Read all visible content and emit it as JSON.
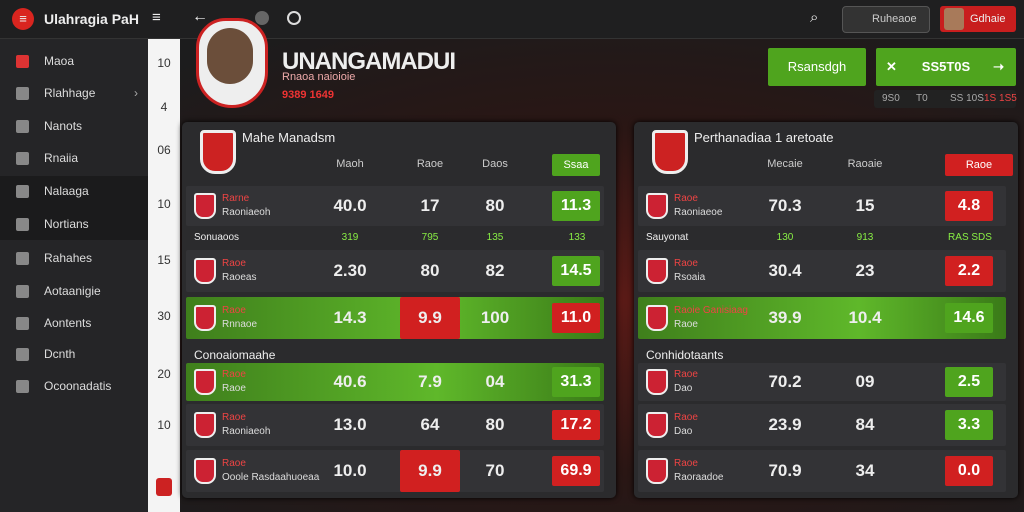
{
  "app": {
    "title": "Ulahragia PaH"
  },
  "topbar": {
    "search": "Ruheaoe",
    "user": "Gdhaie"
  },
  "sidebar": {
    "items": [
      "Maoa",
      "Rlahhage",
      "Nanots",
      "Rnaiia",
      "Nalaaga",
      "Nortians",
      "Rahahes",
      "Aotaanigie",
      "Aontents",
      "Dcnth",
      "Ocoonadatis"
    ]
  },
  "strip": {
    "numbers": [
      "10",
      "4",
      "06",
      "10",
      "15",
      "30",
      "20",
      "10"
    ]
  },
  "profile": {
    "name": "UNANGAMADUI",
    "line1": "Rnaoa naioioie",
    "line2": "9389 1649"
  },
  "actions": {
    "primary": "Rsansdgh",
    "secondary": "SS5T0S",
    "stats": [
      "9S0",
      "T0",
      "SS 10S",
      "1S 1S5"
    ]
  },
  "left_panel": {
    "title": "Mahe Manadsm",
    "columns": [
      "Maoh",
      "Raoe",
      "Daos"
    ],
    "button": "Ssaa",
    "section": "Conoaiomaahe",
    "rows": [
      {
        "name": "Rarne",
        "detail": "Raoniaeoh",
        "values": [
          "40.0",
          "17",
          "80"
        ],
        "badge": "11.3",
        "badge_color": "green",
        "highlight": false
      },
      {
        "group": "Sonuaoos",
        "values": [
          "319",
          "795",
          "135",
          "133"
        ]
      },
      {
        "name": "Raoe",
        "detail": "Raoeas",
        "values": [
          "2.30",
          "80",
          "82"
        ],
        "badge": "14.5",
        "badge_color": "green",
        "highlight": false
      },
      {
        "name": "Raoe",
        "detail": "Rnnaoe",
        "values": [
          "14.3",
          "9.9",
          "100"
        ],
        "badge": "11.0",
        "badge_color": "red",
        "highlight": true,
        "alert_cell": 1
      }
    ],
    "rows2": [
      {
        "name": "Raoe",
        "detail": "Raoe",
        "values": [
          "40.6",
          "7.9",
          "04"
        ],
        "badge": "31.3",
        "badge_color": "green",
        "highlight": true
      },
      {
        "name": "Raoe",
        "detail": "Raoniaeoh",
        "values": [
          "13.0",
          "64",
          "80"
        ],
        "badge": "17.2",
        "badge_color": "red",
        "highlight": false
      },
      {
        "name": "Raoe",
        "detail": "Ooole Rasdaahuoeaa",
        "values": [
          "10.0",
          "9.9",
          "70"
        ],
        "badge": "69.9",
        "badge_color": "red",
        "highlight": false,
        "alert_cell": 1
      }
    ]
  },
  "right_panel": {
    "title": "Perthanadiaa 1 aretoate",
    "columns": [
      "Mecaie",
      "Raoaie"
    ],
    "button": "Raoe",
    "section": "Conhidotaants",
    "rows": [
      {
        "name": "Raoe",
        "detail": "Raoniaeoe",
        "values": [
          "70.3",
          "15"
        ],
        "badge": "4.8",
        "badge_color": "red",
        "highlight": false
      },
      {
        "group": "Sauyonat",
        "values": [
          "130",
          "913",
          "RAS SDS"
        ]
      },
      {
        "name": "Raoe",
        "detail": "Rsoaia",
        "values": [
          "30.4",
          "23"
        ],
        "badge": "2.2",
        "badge_color": "red",
        "highlight": false
      },
      {
        "name": "Raoie Ganisiaag",
        "detail": "Raoe",
        "values": [
          "39.9",
          "10.4"
        ],
        "badge": "14.6",
        "badge_color": "green",
        "highlight": true
      }
    ],
    "rows2": [
      {
        "name": "Raoe",
        "detail": "Dao",
        "values": [
          "70.2",
          "09"
        ],
        "badge": "2.5",
        "badge_color": "green",
        "highlight": false
      },
      {
        "name": "Raoe",
        "detail": "Dao",
        "values": [
          "23.9",
          "84"
        ],
        "badge": "3.3",
        "badge_color": "green",
        "highlight": false
      },
      {
        "name": "Raoe",
        "detail": "Raoraadoe",
        "values": [
          "70.9",
          "34"
        ],
        "badge": "0.0",
        "badge_color": "red",
        "highlight": false
      }
    ]
  }
}
